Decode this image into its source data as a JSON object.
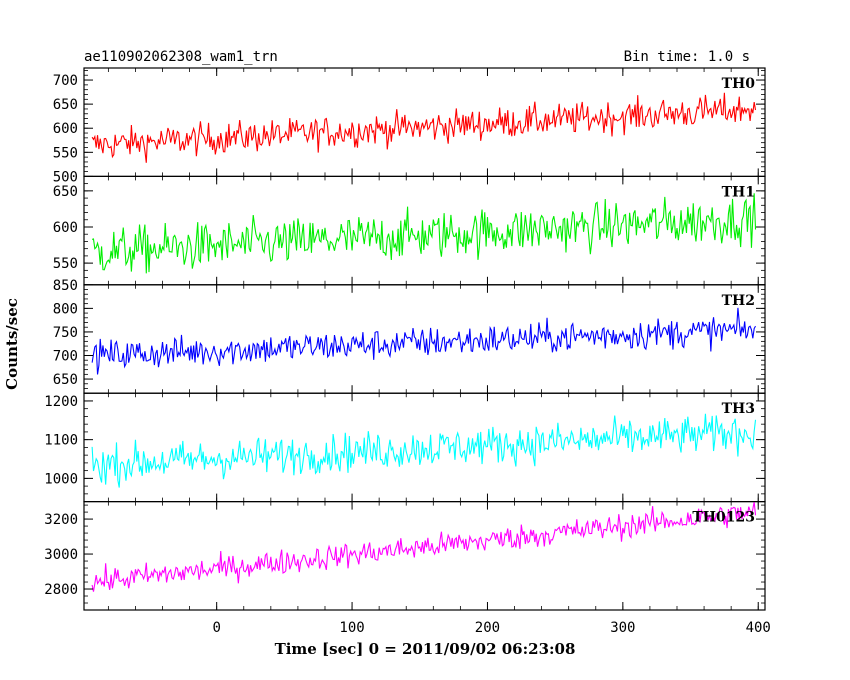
{
  "header": {
    "left_title": "ae110902062308_wam1_trn",
    "right_title": "Bin time: 1.0 s"
  },
  "chart_data": {
    "type": "line",
    "xlabel": "Time [sec] 0 = 2011/09/02 06:23:08",
    "ylabel": "Counts/sec",
    "xlim": [
      -98,
      405
    ],
    "x_ticks": [
      0,
      100,
      200,
      300,
      400
    ],
    "x_step": 1,
    "panels": [
      {
        "name": "TH0",
        "color": "#ff0000",
        "ylim": [
          500,
          725
        ],
        "y_ticks": [
          500,
          550,
          600,
          650,
          700
        ],
        "trend_start": 565,
        "trend_end": 640,
        "noise": 30,
        "t_start": -92,
        "t_end": 398
      },
      {
        "name": "TH1",
        "color": "#00ee00",
        "ylim": [
          520,
          670
        ],
        "y_ticks": [
          550,
          600,
          650
        ],
        "trend_start": 565,
        "trend_end": 612,
        "noise": 30,
        "t_start": -92,
        "t_end": 398
      },
      {
        "name": "TH2",
        "color": "#0000ff",
        "ylim": [
          620,
          850
        ],
        "y_ticks": [
          650,
          700,
          750,
          800,
          850
        ],
        "trend_start": 700,
        "trend_end": 755,
        "noise": 30,
        "t_start": -92,
        "t_end": 398
      },
      {
        "name": "TH3",
        "color": "#00ffff",
        "ylim": [
          940,
          1220
        ],
        "y_ticks": [
          1000,
          1100,
          1200
        ],
        "trend_start": 1035,
        "trend_end": 1120,
        "noise": 45,
        "t_start": -92,
        "t_end": 398
      },
      {
        "name": "TH0123",
        "color": "#ff00ff",
        "ylim": [
          2680,
          3300
        ],
        "y_ticks": [
          2800,
          3000,
          3200
        ],
        "trend_start": 2840,
        "trend_end": 3240,
        "noise": 65,
        "t_start": -92,
        "t_end": 398
      }
    ]
  }
}
